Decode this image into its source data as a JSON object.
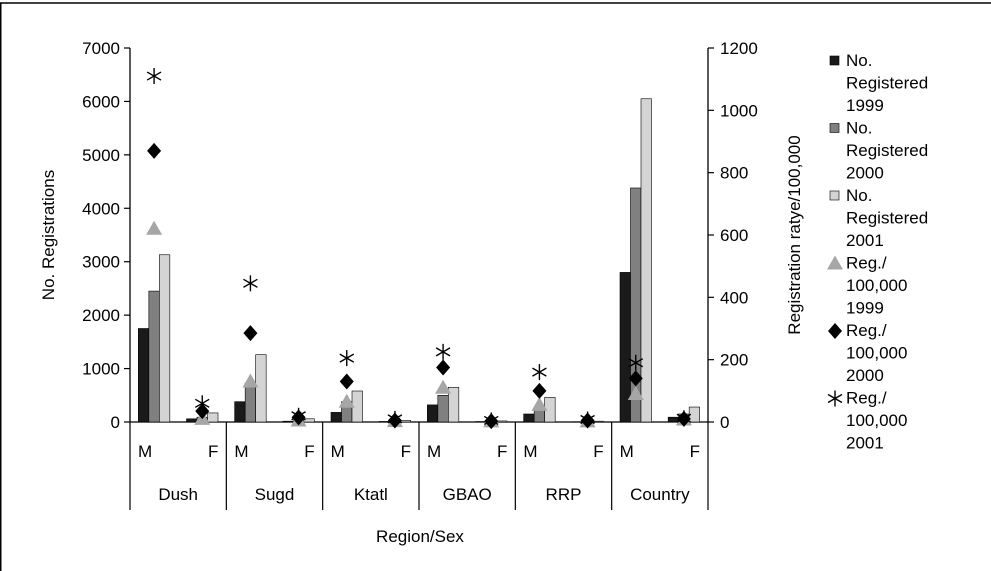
{
  "chart_data": {
    "type": "bar",
    "title": "",
    "xlabel": "Region/Sex",
    "ylabel": "No. Registrations",
    "y2label": "Registration ratye/100,000",
    "ylim": [
      0,
      7000
    ],
    "y2lim": [
      0,
      1200
    ],
    "yticks": [
      "0",
      "1000",
      "2000",
      "3000",
      "4000",
      "5000",
      "6000",
      "7000"
    ],
    "y2ticks": [
      "0",
      "200",
      "400",
      "600",
      "800",
      "1000",
      "1200"
    ],
    "regions": [
      "Dush",
      "Sugd",
      "Ktatl",
      "GBAO",
      "RRP",
      "Country"
    ],
    "sexes": [
      "M",
      "F"
    ],
    "categories": [
      "Dush M",
      "Dush F",
      "Sugd M",
      "Sugd F",
      "Ktatl M",
      "Ktatl F",
      "GBAO M",
      "GBAO F",
      "RRP M",
      "RRP F",
      "Country M",
      "Country F"
    ],
    "grid": false,
    "legend_position": "right",
    "bar_series": [
      {
        "name": "No. Registered 1999",
        "color": "#1a1a1a",
        "values": [
          1750,
          60,
          380,
          15,
          180,
          10,
          320,
          8,
          150,
          5,
          2800,
          90
        ]
      },
      {
        "name": "No. Registered 2000",
        "color": "#808080",
        "values": [
          2450,
          90,
          730,
          25,
          380,
          15,
          500,
          10,
          260,
          8,
          4380,
          150
        ]
      },
      {
        "name": "No. Registered 2001",
        "color": "#d4d4d4",
        "values": [
          3130,
          170,
          1260,
          60,
          580,
          30,
          650,
          20,
          460,
          15,
          6050,
          280
        ]
      }
    ],
    "marker_series": [
      {
        "name": "Reg./ 100,000 1999",
        "marker": "triangle",
        "color": "#a6a6a6",
        "values": [
          620,
          10,
          130,
          5,
          65,
          3,
          110,
          2,
          55,
          2,
          90,
          8
        ]
      },
      {
        "name": "Reg./ 100,000 2000",
        "marker": "diamond",
        "color": "#000000",
        "values": [
          870,
          35,
          285,
          15,
          130,
          5,
          175,
          3,
          100,
          5,
          140,
          10
        ]
      },
      {
        "name": "Reg./ 100,000 2001",
        "marker": "asterisk",
        "color": "#000000",
        "values": [
          1110,
          60,
          445,
          20,
          205,
          10,
          225,
          5,
          160,
          8,
          190,
          12
        ]
      }
    ],
    "legend_lines": [
      [
        "No.",
        "Registered",
        "1999"
      ],
      [
        "No.",
        "Registered",
        "2000"
      ],
      [
        "No.",
        "Registered",
        "2001"
      ],
      [
        "Reg./",
        "100,000",
        "1999"
      ],
      [
        "Reg./",
        "100,000",
        "2000"
      ],
      [
        "Reg./",
        "100,000",
        "2001"
      ]
    ]
  }
}
